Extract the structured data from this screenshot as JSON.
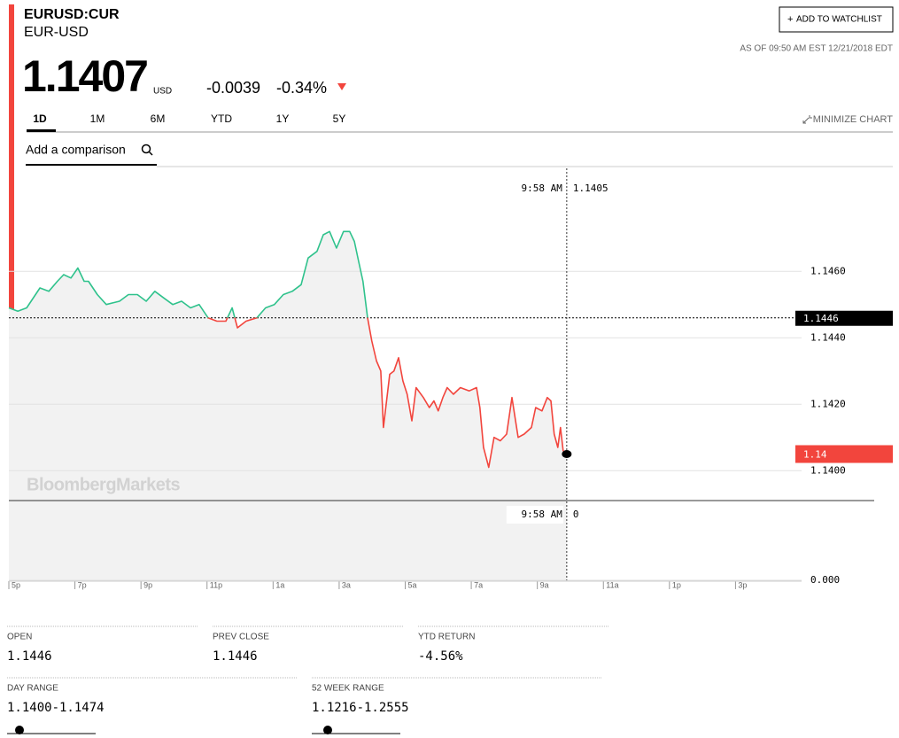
{
  "header": {
    "ticker": "EURUSD:CUR",
    "name": "EUR-USD",
    "price": "1.1407",
    "currency": "USD",
    "change": "-0.0039",
    "change_pct": "-0.34%",
    "watchlist": "ADD TO WATCHLIST",
    "as_of": "AS OF 09:50 AM EST 12/21/2018 EDT"
  },
  "ranges": [
    "1D",
    "1M",
    "6M",
    "YTD",
    "1Y",
    "5Y"
  ],
  "minimize": "MINIMIZE CHART",
  "comparison_placeholder": "Add a comparison",
  "chart_data": {
    "type": "line",
    "watermark": "BloombergMarkets",
    "x": [
      0,
      0.27,
      0.54,
      0.94,
      1.21,
      1.47,
      1.66,
      1.88,
      2.09,
      2.28,
      2.41,
      2.68,
      2.95,
      3.35,
      3.62,
      3.89,
      4.16,
      4.42,
      4.69,
      4.96,
      5.23,
      5.5,
      5.76,
      6.03,
      6.3,
      6.57,
      6.76,
      6.92,
      7.18,
      7.51,
      7.77,
      8.04,
      8.31,
      8.58,
      8.85,
      9.06,
      9.33,
      9.52,
      9.71,
      9.92,
      10.13,
      10.32,
      10.46,
      10.59,
      10.72,
      10.86,
      10.99,
      11.13,
      11.26,
      11.34,
      11.53,
      11.66,
      11.8,
      11.93,
      12.06,
      12.2,
      12.33,
      12.55,
      12.73,
      12.87,
      13.0,
      13.14,
      13.27,
      13.46,
      13.67,
      13.94,
      14.16,
      14.26,
      14.37,
      14.53,
      14.69,
      14.88,
      15.07,
      15.23,
      15.42,
      15.6,
      15.82,
      15.95,
      16.14,
      16.3,
      16.41,
      16.51,
      16.62,
      16.7,
      16.78,
      16.89
    ],
    "values": [
      1.1449,
      1.1448,
      1.1449,
      1.1455,
      1.1454,
      1.1457,
      1.1459,
      1.1458,
      1.1461,
      1.1457,
      1.1457,
      1.1453,
      1.145,
      1.1451,
      1.1453,
      1.1453,
      1.1451,
      1.1454,
      1.1452,
      1.145,
      1.1451,
      1.1449,
      1.145,
      1.1446,
      1.1445,
      1.1445,
      1.1449,
      1.1443,
      1.1445,
      1.1446,
      1.1449,
      1.145,
      1.1453,
      1.1454,
      1.1456,
      1.1464,
      1.1466,
      1.1471,
      1.1472,
      1.1467,
      1.1472,
      1.1472,
      1.1469,
      1.1463,
      1.1457,
      1.1446,
      1.1439,
      1.1433,
      1.143,
      1.1413,
      1.1429,
      1.143,
      1.1434,
      1.1427,
      1.1423,
      1.1415,
      1.1425,
      1.1422,
      1.1419,
      1.1421,
      1.1418,
      1.1422,
      1.1425,
      1.1423,
      1.1425,
      1.1424,
      1.1425,
      1.1419,
      1.1407,
      1.1401,
      1.141,
      1.1409,
      1.1411,
      1.1422,
      1.141,
      1.1411,
      1.1413,
      1.1419,
      1.1418,
      1.1422,
      1.1421,
      1.1411,
      1.1407,
      1.1413,
      1.1406,
      1.1405
    ],
    "up_color": "#2fc28c",
    "down_color": "#f2453d",
    "xlim": [
      0,
      24
    ],
    "xticks": [
      {
        "value": 0,
        "label": "5p"
      },
      {
        "value": 2,
        "label": "7p"
      },
      {
        "value": 4,
        "label": "9p"
      },
      {
        "value": 6,
        "label": "11p"
      },
      {
        "value": 8,
        "label": "1a"
      },
      {
        "value": 10,
        "label": "3a"
      },
      {
        "value": 12,
        "label": "5a"
      },
      {
        "value": 14,
        "label": "7a"
      },
      {
        "value": 16,
        "label": "9a"
      },
      {
        "value": 18,
        "label": "11a"
      },
      {
        "value": 20,
        "label": "1p"
      },
      {
        "value": 22,
        "label": "3p"
      }
    ],
    "ylim": [
      1.1391,
      1.1491
    ],
    "yticks": [
      {
        "value": 1.14,
        "label": "1.1400"
      },
      {
        "value": 1.142,
        "label": "1.1420"
      },
      {
        "value": 1.144,
        "label": "1.1440"
      },
      {
        "value": 1.146,
        "label": "1.1460"
      }
    ],
    "grid": true,
    "reference": {
      "value": 1.1446,
      "label": "1.1446"
    },
    "last_label": {
      "value": 1.1405,
      "label": "1.14"
    },
    "crosshair": {
      "time": "9:58 AM",
      "value": 1.1405,
      "volume": 0
    },
    "volume_yticks": [
      {
        "value": 0,
        "label": "0.000"
      }
    ]
  },
  "stats": [
    {
      "label": "OPEN",
      "value": "1.1446"
    },
    {
      "label": "PREV CLOSE",
      "value": "1.1446"
    },
    {
      "label": "YTD RETURN",
      "value": "-4.56%"
    },
    {
      "label": "DAY RANGE",
      "value": "1.1400-1.1474"
    },
    {
      "label": "52 WEEK RANGE",
      "value": "1.1216-1.2555"
    }
  ]
}
